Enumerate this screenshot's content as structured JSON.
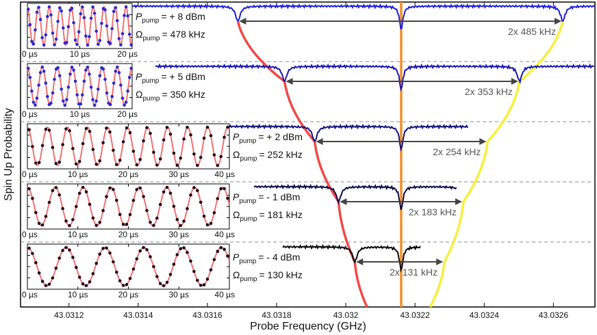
{
  "chart_data": {
    "type": "spectra",
    "xlabel": "Probe Frequency (GHz)",
    "ylabel": "Spin Up Probability",
    "xlim": [
      43.03106,
      43.03272
    ],
    "xticks": [
      43.0312,
      43.0314,
      43.0316,
      43.0318,
      43.032,
      {
        "value": 43.0322,
        "label": "43.0322"
      },
      43.0324,
      43.0326
    ],
    "center": 43.03216,
    "pump_symbol": "P",
    "rabi_symbol": "Ω",
    "subscript": "pump",
    "rows": [
      {
        "power_label": "= + 8 dBm",
        "rabi": 478,
        "rabi_label": "= 478 kHz",
        "split_label": "2x 485 kHz",
        "dips": [
          43.031688,
          43.032627
        ],
        "span": [
          43.03131,
          43.03272
        ],
        "color": "#1c1cd8",
        "inset_xlim": [
          0,
          20
        ],
        "inset_xticks": [
          {
            "value": 0,
            "label": "0 µs"
          },
          {
            "value": 10,
            "label": "10 µs"
          },
          {
            "value": 20,
            "label": "20 µs"
          }
        ]
      },
      {
        "power_label": "= + 5 dBm",
        "rabi": 350,
        "rabi_label": "= 350 kHz",
        "split_label": "2x 353 kHz",
        "dips": [
          43.031823,
          43.032502
        ],
        "span": [
          43.03145,
          43.03272
        ],
        "color": "#1616b0",
        "inset_xlim": [
          0,
          20
        ],
        "inset_xticks": [
          {
            "value": 0,
            "label": "0 µs"
          },
          {
            "value": 10,
            "label": "10 µs"
          },
          {
            "value": 20,
            "label": "20 µs"
          }
        ]
      },
      {
        "power_label": "= + 2 dBm",
        "rabi": 252,
        "rabi_label": "= 252 kHz",
        "split_label": "2x 254 kHz",
        "dips": [
          43.03191,
          43.03241
        ],
        "span": [
          43.031625,
          43.032355
        ],
        "color": "#12127c",
        "inset_xlim": [
          0,
          40
        ],
        "inset_xticks": [
          {
            "value": 0,
            "label": "0 µs"
          },
          {
            "value": 10,
            "label": "10 µs"
          },
          {
            "value": 20,
            "label": "20 µs"
          },
          {
            "value": 30,
            "label": "30 µs"
          },
          {
            "value": 40,
            "label": "40 µs"
          }
        ]
      },
      {
        "power_label": "= - 1 dBm",
        "rabi": 181,
        "rabi_label": "= 181 kHz",
        "split_label": "2x 183 kHz",
        "dips": [
          43.031979,
          43.03234
        ],
        "span": [
          43.031735,
          43.03232
        ],
        "color": "#0a0a48",
        "inset_xlim": [
          0,
          40
        ],
        "inset_xticks": [
          {
            "value": 0,
            "label": "0 µs"
          },
          {
            "value": 10,
            "label": "10 µs"
          },
          {
            "value": 20,
            "label": "20 µs"
          },
          {
            "value": 30,
            "label": "30 µs"
          },
          {
            "value": 40,
            "label": "40 µs"
          }
        ]
      },
      {
        "power_label": "= - 4 dBm",
        "rabi": 130,
        "rabi_label": "= 130 kHz",
        "split_label": "2x 131 kHz",
        "dips": [
          43.032026,
          43.032285
        ],
        "span": [
          43.031818,
          43.032218
        ],
        "color": "#060612",
        "inset_xlim": [
          0,
          40
        ],
        "inset_xticks": [
          {
            "value": 0,
            "label": "0 µs"
          },
          {
            "value": 10,
            "label": "10 µs"
          },
          {
            "value": 20,
            "label": "20 µs"
          },
          {
            "value": 30,
            "label": "30 µs"
          },
          {
            "value": 40,
            "label": "40 µs"
          }
        ]
      }
    ]
  }
}
